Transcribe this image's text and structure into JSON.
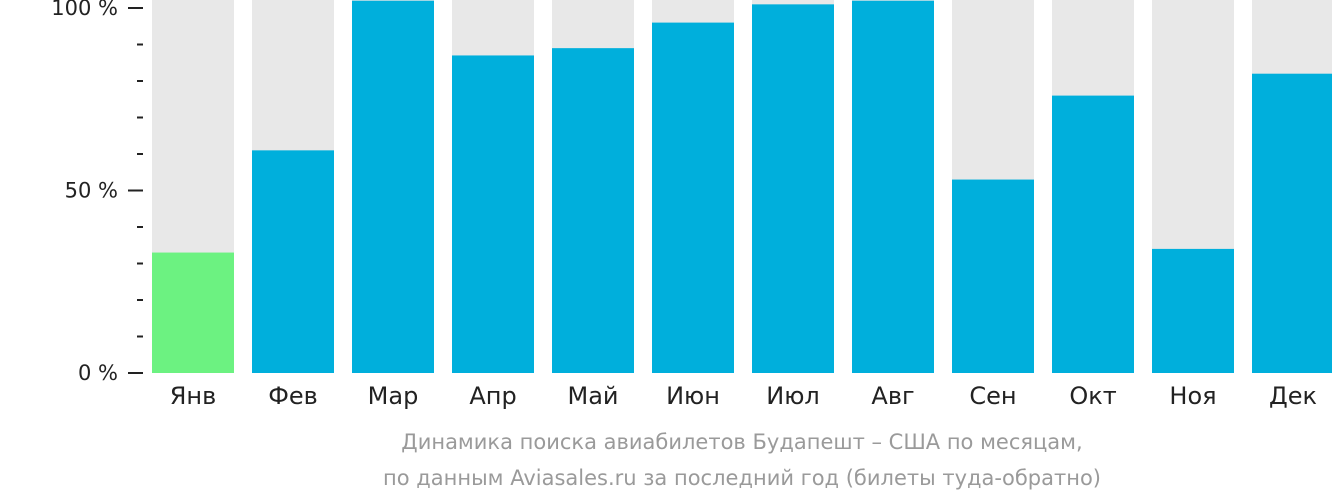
{
  "chart_data": {
    "type": "bar",
    "categories": [
      "Янв",
      "Фев",
      "Мар",
      "Апр",
      "Май",
      "Июн",
      "Июл",
      "Авг",
      "Сен",
      "Окт",
      "Ноя",
      "Дек"
    ],
    "values": [
      33,
      61,
      102,
      87,
      89,
      96,
      101,
      102,
      53,
      76,
      34,
      82
    ],
    "ylim": [
      0,
      100
    ],
    "yticks": [
      {
        "value": 0,
        "label": "0 %"
      },
      {
        "value": 50,
        "label": "50 %"
      },
      {
        "value": 100,
        "label": "100 %"
      }
    ],
    "minor_tick_step": 10,
    "grid": false,
    "colors": {
      "bar": "#00afdc",
      "highlight_bar": "#6cf281",
      "background_bar": "#e8e8e8",
      "axis": "#222222"
    },
    "highlight_index": 0,
    "caption_line1": "Динамика поиска авиабилетов Будапешт – США по месяцам,",
    "caption_line2": "по данным Aviasales.ru за последний год (билеты туда-обратно)"
  }
}
